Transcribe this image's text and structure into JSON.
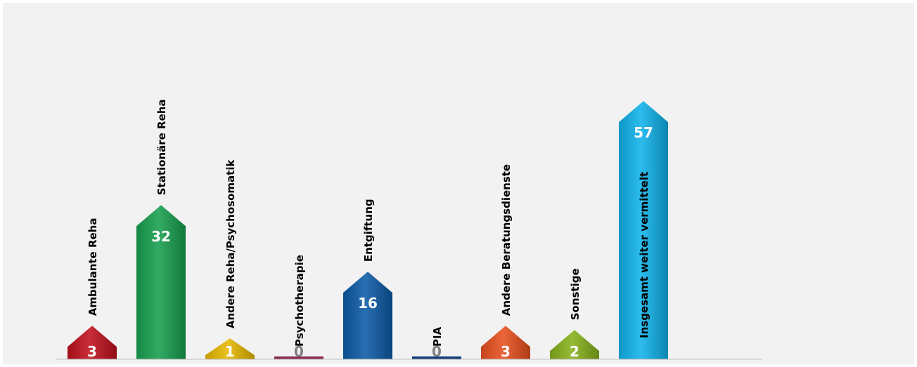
{
  "chart_data": {
    "type": "bar",
    "title": "",
    "xlabel": "",
    "ylabel": "",
    "ylim": [
      0,
      62
    ],
    "grid": false,
    "legend": "none",
    "categories": [
      "Ambulante Reha",
      "Stationäre Reha",
      "Andere Reha/Psychosomatik",
      "Psychotherapie",
      "Entgiftung",
      "PIA",
      "Andere Beratungsdienste",
      "Sonstige",
      "Insgesamt weiter vermittelt"
    ],
    "values": [
      3,
      32,
      1,
      0,
      16,
      0,
      3,
      2,
      57
    ],
    "value_labels": [
      "3",
      "32",
      "1",
      "0",
      "16",
      "0",
      "3",
      "2",
      "57"
    ],
    "colors": [
      "#c0101d",
      "#17a04f",
      "#e6b800",
      "#8b2a52",
      "#0c5aa6",
      "#0f3f79",
      "#e8501e",
      "#86b21b",
      "#0fb3ea"
    ]
  }
}
